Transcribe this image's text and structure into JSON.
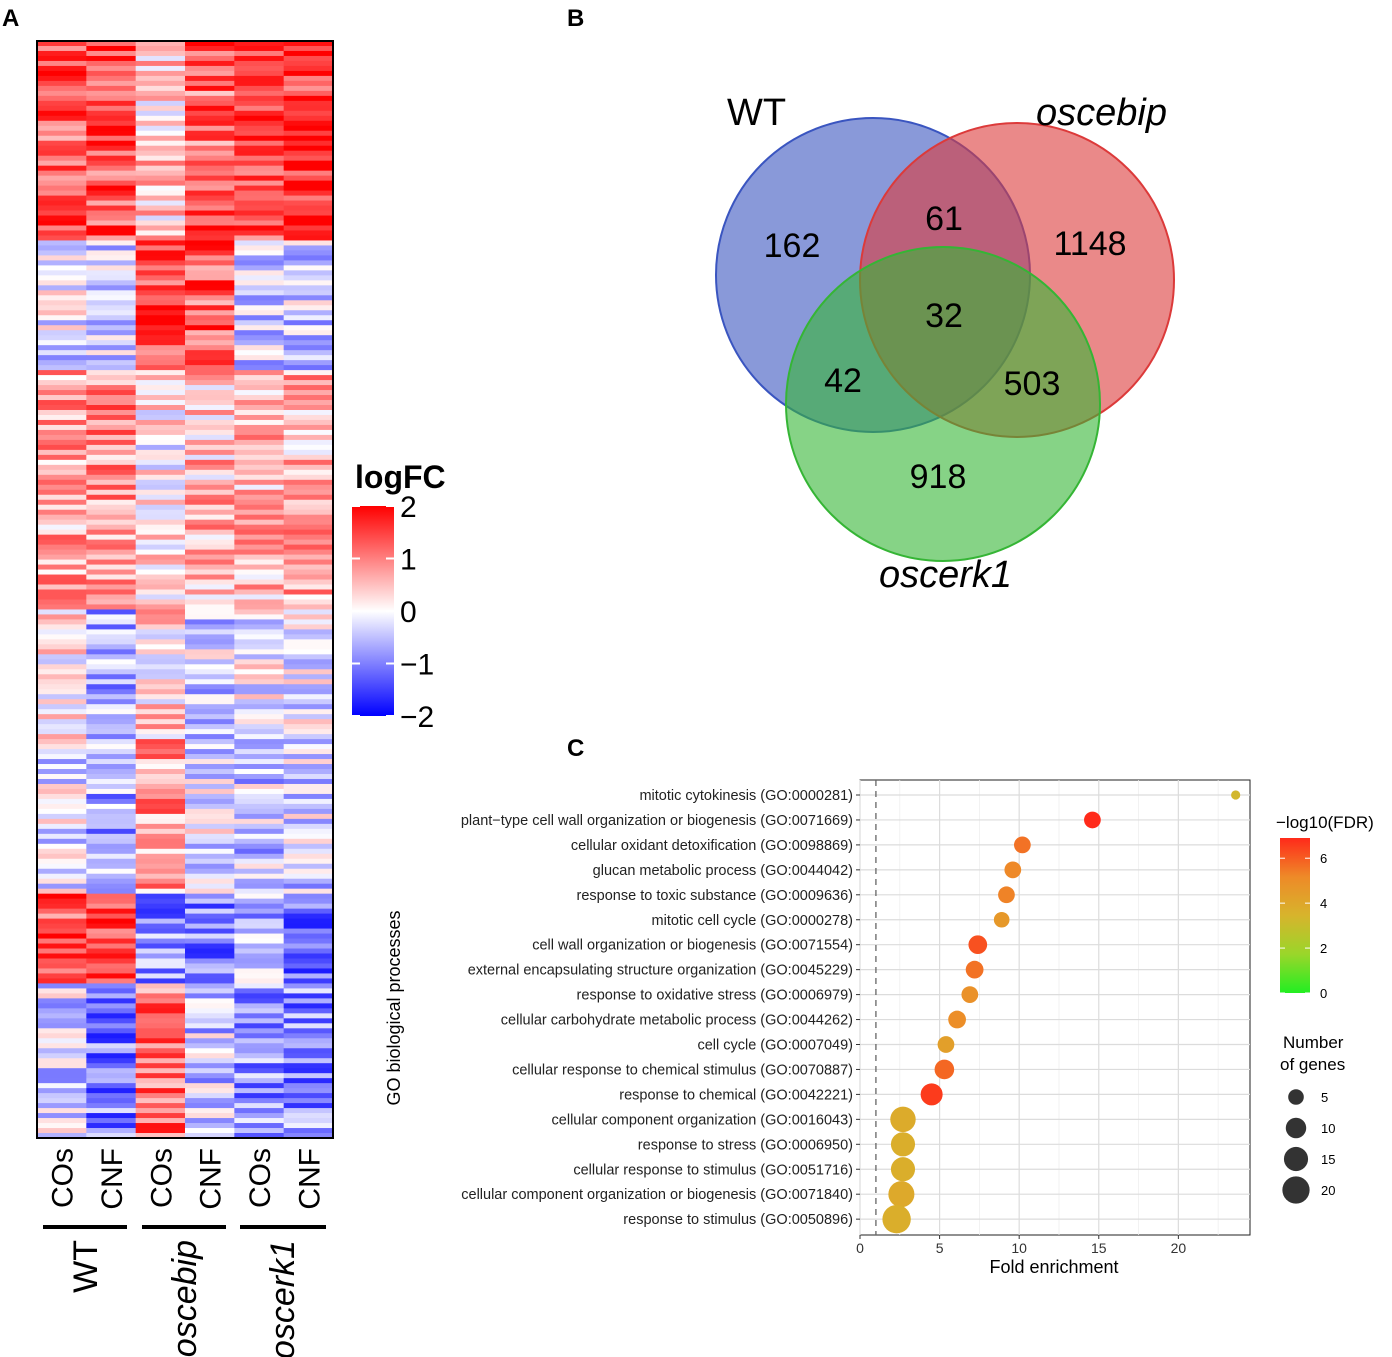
{
  "panels": {
    "a_letter": "A",
    "b_letter": "B",
    "c_letter": "C"
  },
  "heatmap": {
    "conditions": [
      "COs",
      "CNF",
      "COs",
      "CNF",
      "COs",
      "CNF"
    ],
    "genotypes": [
      {
        "label": "WT",
        "italic": false
      },
      {
        "label": "oscebip",
        "italic": true
      },
      {
        "label": "oscerk1",
        "italic": true
      }
    ],
    "legend_title": "logFC",
    "legend_ticks": [
      "2",
      "1",
      "0",
      "−1",
      "−2"
    ],
    "legend_values": [
      2,
      1,
      0,
      -1,
      -2
    ],
    "colors": {
      "high": "#ff0000",
      "mid": "#ffffff",
      "low": "#0000ff"
    }
  },
  "venn": {
    "sets": [
      {
        "label": "WT",
        "italic": false,
        "color": "#4a62c4"
      },
      {
        "label": "oscebip",
        "italic": true,
        "color": "#e04a4a"
      },
      {
        "label": "oscerk1",
        "italic": true,
        "color": "#3fb83f"
      }
    ],
    "regions": {
      "wt_only": "162",
      "oscebip_only": "1148",
      "oscerk1_only": "918",
      "wt_oscebip": "61",
      "wt_oscerk1": "42",
      "oscebip_oscerk1": "503",
      "all_three": "32"
    }
  },
  "chart_data": {
    "type": "scatter",
    "title": "",
    "ylabel": "GO biological processes",
    "xlabel": "Fold enrichment",
    "xlim": [
      0,
      24.5
    ],
    "xticks": [
      0,
      5,
      10,
      15,
      20
    ],
    "reference_line_x": 1,
    "terms": [
      {
        "label": "mitotic cytokinesis (GO:0000281)",
        "fold": 23.6,
        "genes": 1,
        "neglog10fdr": 3.3
      },
      {
        "label": "plant−type cell wall organization or biogenesis (GO:0071669)",
        "fold": 14.6,
        "genes": 6,
        "neglog10fdr": 6.9
      },
      {
        "label": "cellular oxidant detoxification (GO:0098869)",
        "fold": 10.2,
        "genes": 6,
        "neglog10fdr": 5.6
      },
      {
        "label": "glucan metabolic process (GO:0044042)",
        "fold": 9.6,
        "genes": 6,
        "neglog10fdr": 5.2
      },
      {
        "label": "response to toxic substance (GO:0009636)",
        "fold": 9.2,
        "genes": 6,
        "neglog10fdr": 5.3
      },
      {
        "label": "mitotic cell cycle (GO:0000278)",
        "fold": 8.9,
        "genes": 5,
        "neglog10fdr": 4.6
      },
      {
        "label": "cell wall organization or biogenesis (GO:0071554)",
        "fold": 7.4,
        "genes": 8,
        "neglog10fdr": 6.2
      },
      {
        "label": "external encapsulating structure organization (GO:0045229)",
        "fold": 7.2,
        "genes": 7,
        "neglog10fdr": 5.6
      },
      {
        "label": "response to oxidative stress (GO:0006979)",
        "fold": 6.9,
        "genes": 6,
        "neglog10fdr": 4.9
      },
      {
        "label": "cellular carbohydrate metabolic process (GO:0044262)",
        "fold": 6.1,
        "genes": 7,
        "neglog10fdr": 5.0
      },
      {
        "label": "cell cycle (GO:0007049)",
        "fold": 5.4,
        "genes": 6,
        "neglog10fdr": 4.3
      },
      {
        "label": "cellular response to chemical stimulus (GO:0070887)",
        "fold": 5.3,
        "genes": 9,
        "neglog10fdr": 5.8
      },
      {
        "label": "response to chemical (GO:0042221)",
        "fold": 4.5,
        "genes": 12,
        "neglog10fdr": 6.6
      },
      {
        "label": "cellular component organization (GO:0016043)",
        "fold": 2.7,
        "genes": 17,
        "neglog10fdr": 3.8
      },
      {
        "label": "response to stress (GO:0006950)",
        "fold": 2.7,
        "genes": 15,
        "neglog10fdr": 3.7
      },
      {
        "label": "cellular response to stimulus (GO:0051716)",
        "fold": 2.7,
        "genes": 15,
        "neglog10fdr": 3.7
      },
      {
        "label": "cellular component organization or biogenesis (GO:0071840)",
        "fold": 2.6,
        "genes": 18,
        "neglog10fdr": 3.9
      },
      {
        "label": "response to stimulus (GO:0050896)",
        "fold": 2.3,
        "genes": 22,
        "neglog10fdr": 3.7
      }
    ],
    "color_legend": {
      "title": "−log10(FDR)",
      "ticks": [
        0,
        2,
        4,
        6
      ],
      "range": [
        0,
        6.9
      ]
    },
    "size_legend": {
      "title_line1": "Number",
      "title_line2": "of genes",
      "values": [
        5,
        10,
        15,
        20
      ]
    }
  }
}
